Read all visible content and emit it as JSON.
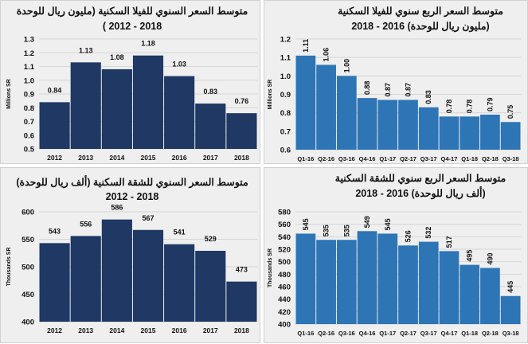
{
  "chart_data": [
    {
      "type": "bar",
      "title": [
        "متوسط السعر السنوي للفيلا السكنية (مليون ريال للوحدة",
        "2018 - 2012 )"
      ],
      "ylabel": "Millions SR",
      "ylim": [
        0.5,
        1.3
      ],
      "yticks": [
        0.5,
        0.6,
        0.7,
        0.8,
        0.9,
        1.0,
        1.1,
        1.2,
        1.3
      ],
      "decimals": 1,
      "categories": [
        "2012",
        "2013",
        "2014",
        "2015",
        "2016",
        "2017",
        "2018"
      ],
      "values": [
        0.84,
        1.13,
        1.08,
        1.18,
        1.03,
        0.83,
        0.76
      ],
      "data_labels": [
        "0.84",
        "1.13",
        "1.08",
        "1.18",
        "1.03",
        "0.83",
        "0.76"
      ],
      "color": "#1f3864",
      "label_orientation": "horizontal",
      "grid": true
    },
    {
      "type": "bar",
      "title": [
        "متوسط السعر الربع سنوي للفيلا السكنية",
        "(مليون ريال للوحدة) 2016 - 2018"
      ],
      "ylabel": "Millions SR",
      "ylim": [
        0.6,
        1.2
      ],
      "yticks": [
        0.6,
        0.7,
        0.8,
        0.9,
        1.0,
        1.1,
        1.2
      ],
      "decimals": 1,
      "categories": [
        "Q1-16",
        "Q2-16",
        "Q3-16",
        "Q4-16",
        "Q1-17",
        "Q2-17",
        "Q3-17",
        "Q4-17",
        "Q1-18",
        "Q2-18",
        "Q3-18"
      ],
      "values": [
        1.11,
        1.06,
        1.0,
        0.88,
        0.87,
        0.87,
        0.83,
        0.78,
        0.78,
        0.79,
        0.75
      ],
      "data_labels": [
        "1.11",
        "1.06",
        "1.00",
        "0.88",
        "0.87",
        "0.87",
        "0.83",
        "0.78",
        "0.78",
        "0.79",
        "0.75"
      ],
      "color": "#2e75b6",
      "label_orientation": "vertical",
      "grid": true
    },
    {
      "type": "bar",
      "title": [
        "متوسط السعر السنوي للشقة السكنية (ألف ريال للوحدة)",
        "2018 - 2012"
      ],
      "ylabel": "Thousands SR",
      "ylim": [
        400,
        600
      ],
      "yticks": [
        400,
        450,
        500,
        550,
        600
      ],
      "decimals": 0,
      "categories": [
        "2012",
        "2013",
        "2014",
        "2015",
        "2016",
        "2017",
        "2018"
      ],
      "values": [
        543,
        556,
        586,
        567,
        541,
        529,
        473
      ],
      "data_labels": [
        "543",
        "556",
        "586",
        "567",
        "541",
        "529",
        "473"
      ],
      "color": "#1f3864",
      "label_orientation": "horizontal",
      "grid": true
    },
    {
      "type": "bar",
      "title": [
        "متوسط السعر الربع سنوي للشقة السكنية",
        "(ألف ريال للوحدة) 2016 - 2018"
      ],
      "ylabel": "Thousands SR",
      "ylim": [
        400,
        580
      ],
      "yticks": [
        400,
        420,
        440,
        460,
        480,
        500,
        520,
        540,
        560,
        580
      ],
      "decimals": 0,
      "categories": [
        "Q1-16",
        "Q2-16",
        "Q3-16",
        "Q4-16",
        "Q1-17",
        "Q2-17",
        "Q3-17",
        "Q4-17",
        "Q1-18",
        "Q2-18",
        "Q3-18"
      ],
      "values": [
        545,
        535,
        535,
        549,
        545,
        526,
        532,
        517,
        495,
        490,
        445
      ],
      "data_labels": [
        "545",
        "535",
        "535",
        "549",
        "545",
        "526",
        "532",
        "517",
        "495",
        "490",
        "445"
      ],
      "color": "#2e75b6",
      "label_orientation": "vertical",
      "grid": true
    }
  ]
}
